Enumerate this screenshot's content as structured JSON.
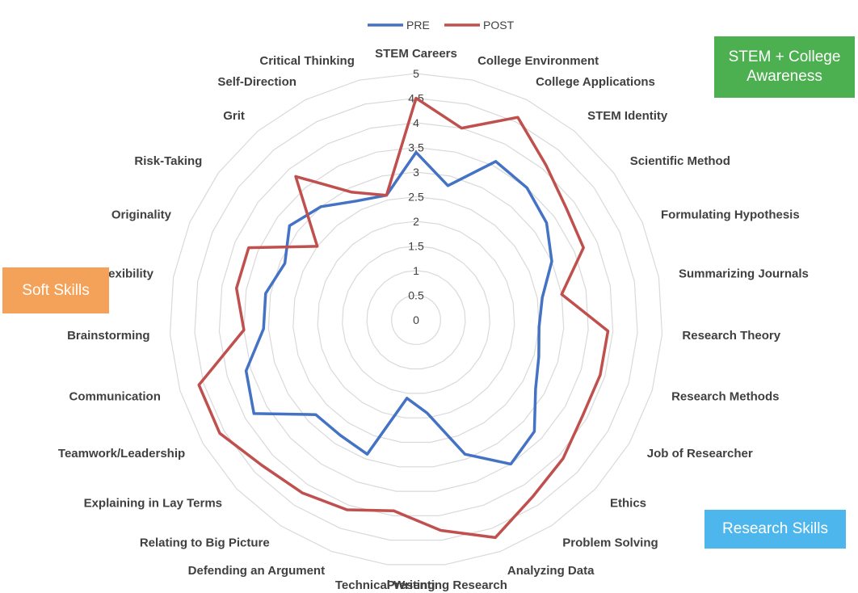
{
  "chart_data": {
    "type": "radar",
    "axes": [
      "STEM Careers",
      "College Environment",
      "College Applications",
      "STEM Identity",
      "Scientific Method",
      "Formulating Hypothesis",
      "Summarizing Journals",
      "Research Theory",
      "Research Methods",
      "Job of Researcher",
      "Ethics",
      "Problem Solving",
      "Analyzing Data",
      "Presenting Research",
      "Technical Writing",
      "Defending an Argument",
      "Relating to Big Picture",
      "Explaining in Lay Terms",
      "Teamwork/Leadership",
      "Communication",
      "Brainstorming",
      "Flexibility",
      "Originality",
      "Risk-Taking",
      "Grit",
      "Self-Direction",
      "Critical Thinking"
    ],
    "ticks": [
      "0",
      "0.5",
      "1",
      "1.5",
      "2",
      "2.5",
      "3",
      "3.5",
      "4",
      "4.5",
      "5"
    ],
    "range": [
      0,
      5
    ],
    "grid": true,
    "legend_position": "top",
    "series": [
      {
        "name": "PRE",
        "color": "#4472C4",
        "values": [
          3.4,
          2.8,
          3.6,
          3.5,
          3.3,
          3.0,
          2.6,
          2.5,
          2.6,
          2.8,
          3.3,
          3.5,
          2.9,
          1.9,
          1.6,
          2.9,
          2.8,
          2.8,
          3.8,
          3.6,
          3.1,
          3.1,
          2.9,
          3.2,
          3.0,
          2.7,
          2.6
        ]
      },
      {
        "name": "POST",
        "color": "#C0504D",
        "values": [
          4.5,
          4.0,
          4.6,
          4.1,
          3.8,
          3.7,
          3.0,
          3.9,
          3.9,
          3.9,
          4.1,
          4.3,
          4.7,
          4.3,
          3.9,
          4.1,
          4.2,
          4.3,
          4.6,
          4.6,
          3.5,
          3.7,
          3.7,
          2.5,
          3.8,
          2.9,
          2.6
        ]
      }
    ]
  },
  "callouts": {
    "stem": {
      "label": "STEM + College Awareness",
      "color": "#4CAF50"
    },
    "soft": {
      "label": "Soft Skills",
      "color": "#F4A259"
    },
    "research": {
      "label": "Research Skills",
      "color": "#4DB6EC"
    }
  }
}
